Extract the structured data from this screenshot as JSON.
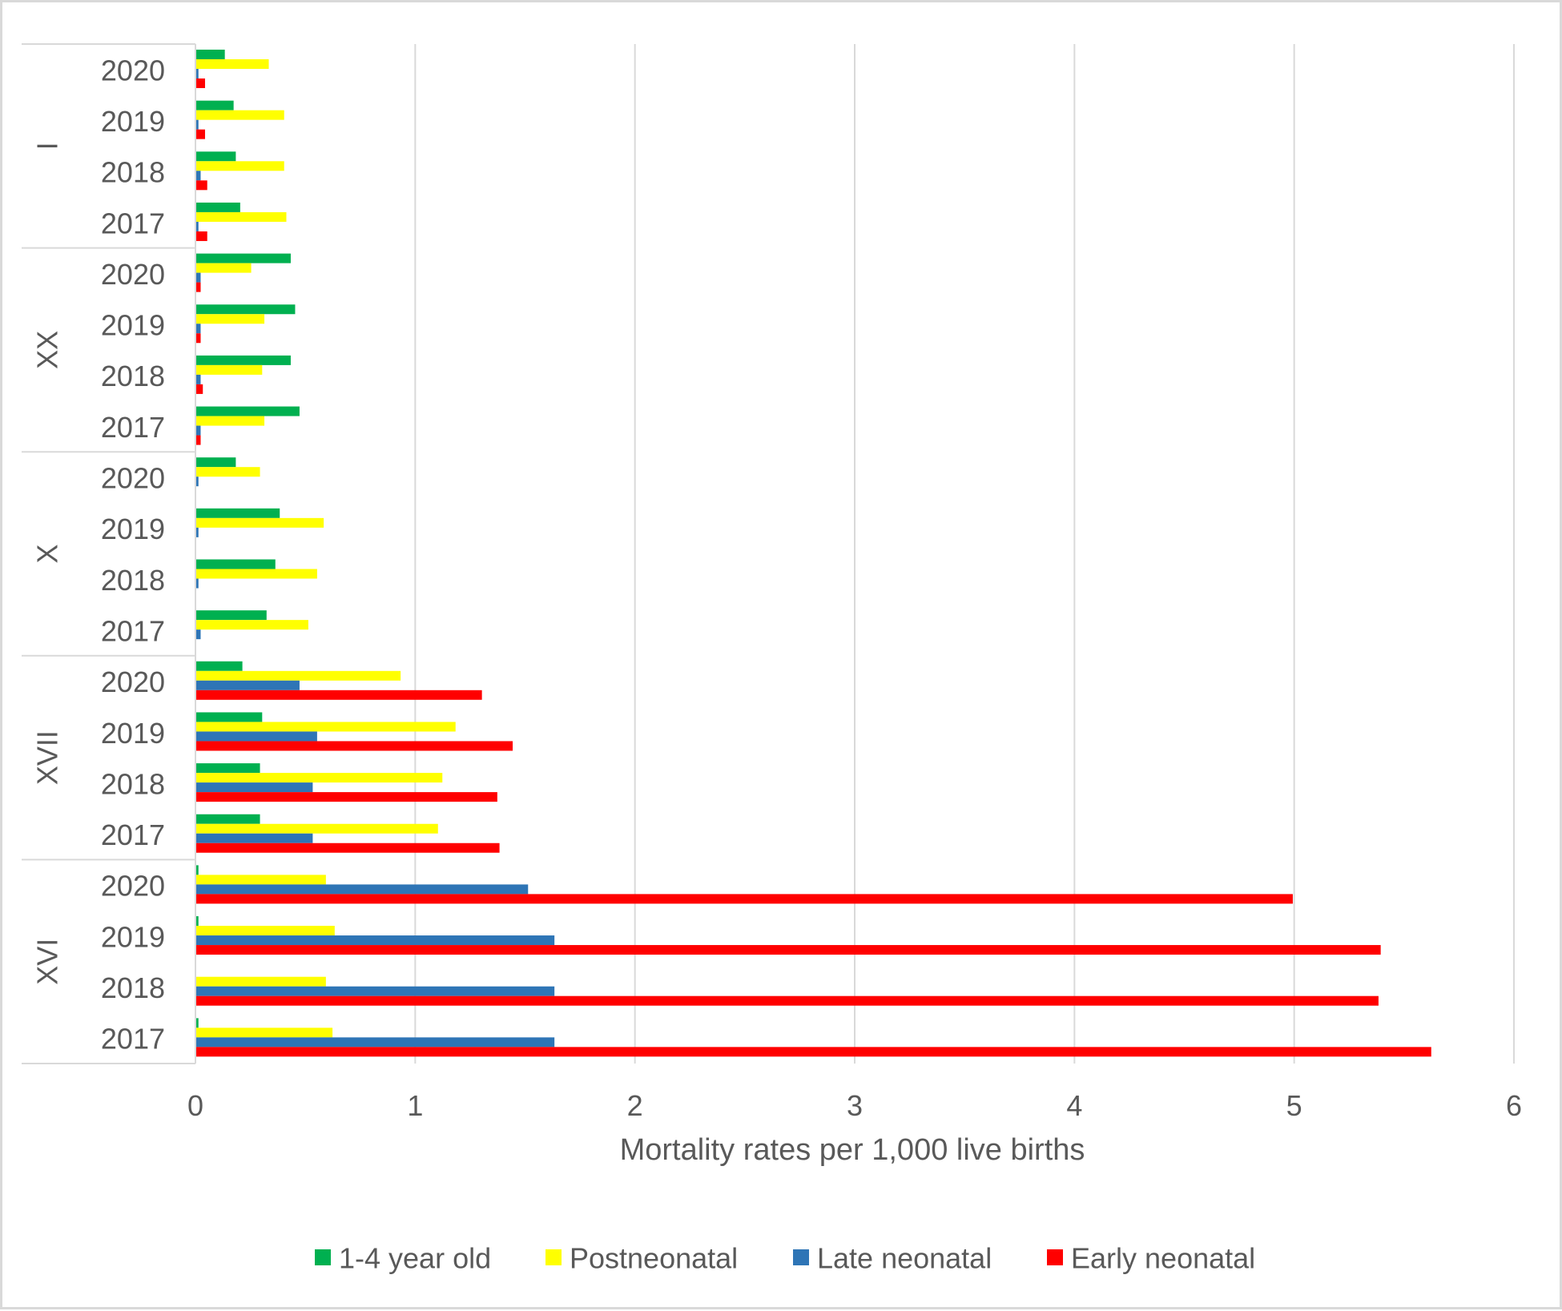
{
  "chart_data": {
    "type": "bar",
    "orientation": "horizontal",
    "xlabel": "Mortality rates per 1,000 live births",
    "xlim": [
      0,
      6
    ],
    "xticks": [
      0,
      1,
      2,
      3,
      4,
      5,
      6
    ],
    "grid": "vertical",
    "legend_position": "bottom",
    "colors": {
      "1-4 year old": "#00b050",
      "Postneonatal": "#ffff00",
      "Late neonatal": "#2e75b6",
      "Early neonatal": "#ff0000"
    },
    "series_names": [
      "1-4 year old",
      "Postneonatal",
      "Late neonatal",
      "Early neonatal"
    ],
    "groups": [
      {
        "name": "I",
        "years": [
          {
            "year": "2020",
            "values": [
              0.13,
              0.33,
              0.01,
              0.04
            ]
          },
          {
            "year": "2019",
            "values": [
              0.17,
              0.4,
              0.01,
              0.04
            ]
          },
          {
            "year": "2018",
            "values": [
              0.18,
              0.4,
              0.02,
              0.05
            ]
          },
          {
            "year": "2017",
            "values": [
              0.2,
              0.41,
              0.01,
              0.05
            ]
          }
        ]
      },
      {
        "name": "XX",
        "years": [
          {
            "year": "2020",
            "values": [
              0.43,
              0.25,
              0.02,
              0.02
            ]
          },
          {
            "year": "2019",
            "values": [
              0.45,
              0.31,
              0.02,
              0.02
            ]
          },
          {
            "year": "2018",
            "values": [
              0.43,
              0.3,
              0.02,
              0.03
            ]
          },
          {
            "year": "2017",
            "values": [
              0.47,
              0.31,
              0.02,
              0.02
            ]
          }
        ]
      },
      {
        "name": "X",
        "years": [
          {
            "year": "2020",
            "values": [
              0.18,
              0.29,
              0.01,
              0.0
            ]
          },
          {
            "year": "2019",
            "values": [
              0.38,
              0.58,
              0.01,
              0.0
            ]
          },
          {
            "year": "2018",
            "values": [
              0.36,
              0.55,
              0.01,
              0.0
            ]
          },
          {
            "year": "2017",
            "values": [
              0.32,
              0.51,
              0.02,
              0.0
            ]
          }
        ]
      },
      {
        "name": "XVII",
        "years": [
          {
            "year": "2020",
            "values": [
              0.21,
              0.93,
              0.47,
              1.3
            ]
          },
          {
            "year": "2019",
            "values": [
              0.3,
              1.18,
              0.55,
              1.44
            ]
          },
          {
            "year": "2018",
            "values": [
              0.29,
              1.12,
              0.53,
              1.37
            ]
          },
          {
            "year": "2017",
            "values": [
              0.29,
              1.1,
              0.53,
              1.38
            ]
          }
        ]
      },
      {
        "name": "XVI",
        "years": [
          {
            "year": "2020",
            "values": [
              0.01,
              0.59,
              1.51,
              4.99
            ]
          },
          {
            "year": "2019",
            "values": [
              0.01,
              0.63,
              1.63,
              5.39
            ]
          },
          {
            "year": "2018",
            "values": [
              0.0,
              0.59,
              1.63,
              5.38
            ]
          },
          {
            "year": "2017",
            "values": [
              0.01,
              0.62,
              1.63,
              5.62
            ]
          }
        ]
      }
    ]
  }
}
